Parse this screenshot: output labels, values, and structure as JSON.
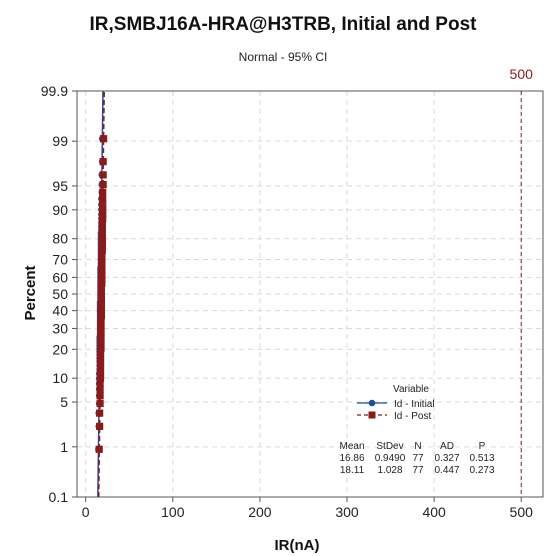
{
  "chart_data": {
    "type": "scatter",
    "title": "IR,SMBJ16A-HRA@H3TRB, Initial and Post",
    "subtitle": "Normal - 95% CI",
    "xlabel": "IR(nA)",
    "ylabel": "Percent",
    "x_ticks": [
      0,
      100,
      200,
      300,
      400,
      500
    ],
    "y_ticks": [
      0.1,
      1,
      5,
      10,
      20,
      30,
      40,
      50,
      60,
      70,
      80,
      90,
      95,
      99,
      99.9
    ],
    "xlim": [
      -10,
      525
    ],
    "ylim": [
      0.1,
      99.9
    ],
    "y_scale": "normal-probability",
    "grid": true,
    "reference_line": {
      "x": 500,
      "label": "500",
      "color": "#8b1a1a",
      "style": "dashed"
    },
    "legend": {
      "title": "Variable",
      "placement": "lower-right",
      "entries": [
        {
          "label": "Id - Initial",
          "color": "#1f4e9a",
          "marker": "circle",
          "line": "solid"
        },
        {
          "label": "Id - Post",
          "color": "#8b1a1a",
          "marker": "square",
          "line": "dashed"
        }
      ]
    },
    "stats_table": {
      "headers": [
        "Mean",
        "StDev",
        "N",
        "AD",
        "P"
      ],
      "rows": [
        [
          "16.86",
          "0.9490",
          "77",
          "0.327",
          "0.513"
        ],
        [
          "18.11",
          "1.028",
          "77",
          "0.447",
          "0.273"
        ]
      ]
    },
    "series": [
      {
        "name": "Id - Initial",
        "mean": 16.86,
        "stdev": 0.949,
        "n": 77,
        "color": "#1f4e9a"
      },
      {
        "name": "Id - Post",
        "mean": 18.11,
        "stdev": 1.028,
        "n": 77,
        "color": "#8b1a1a"
      }
    ]
  }
}
